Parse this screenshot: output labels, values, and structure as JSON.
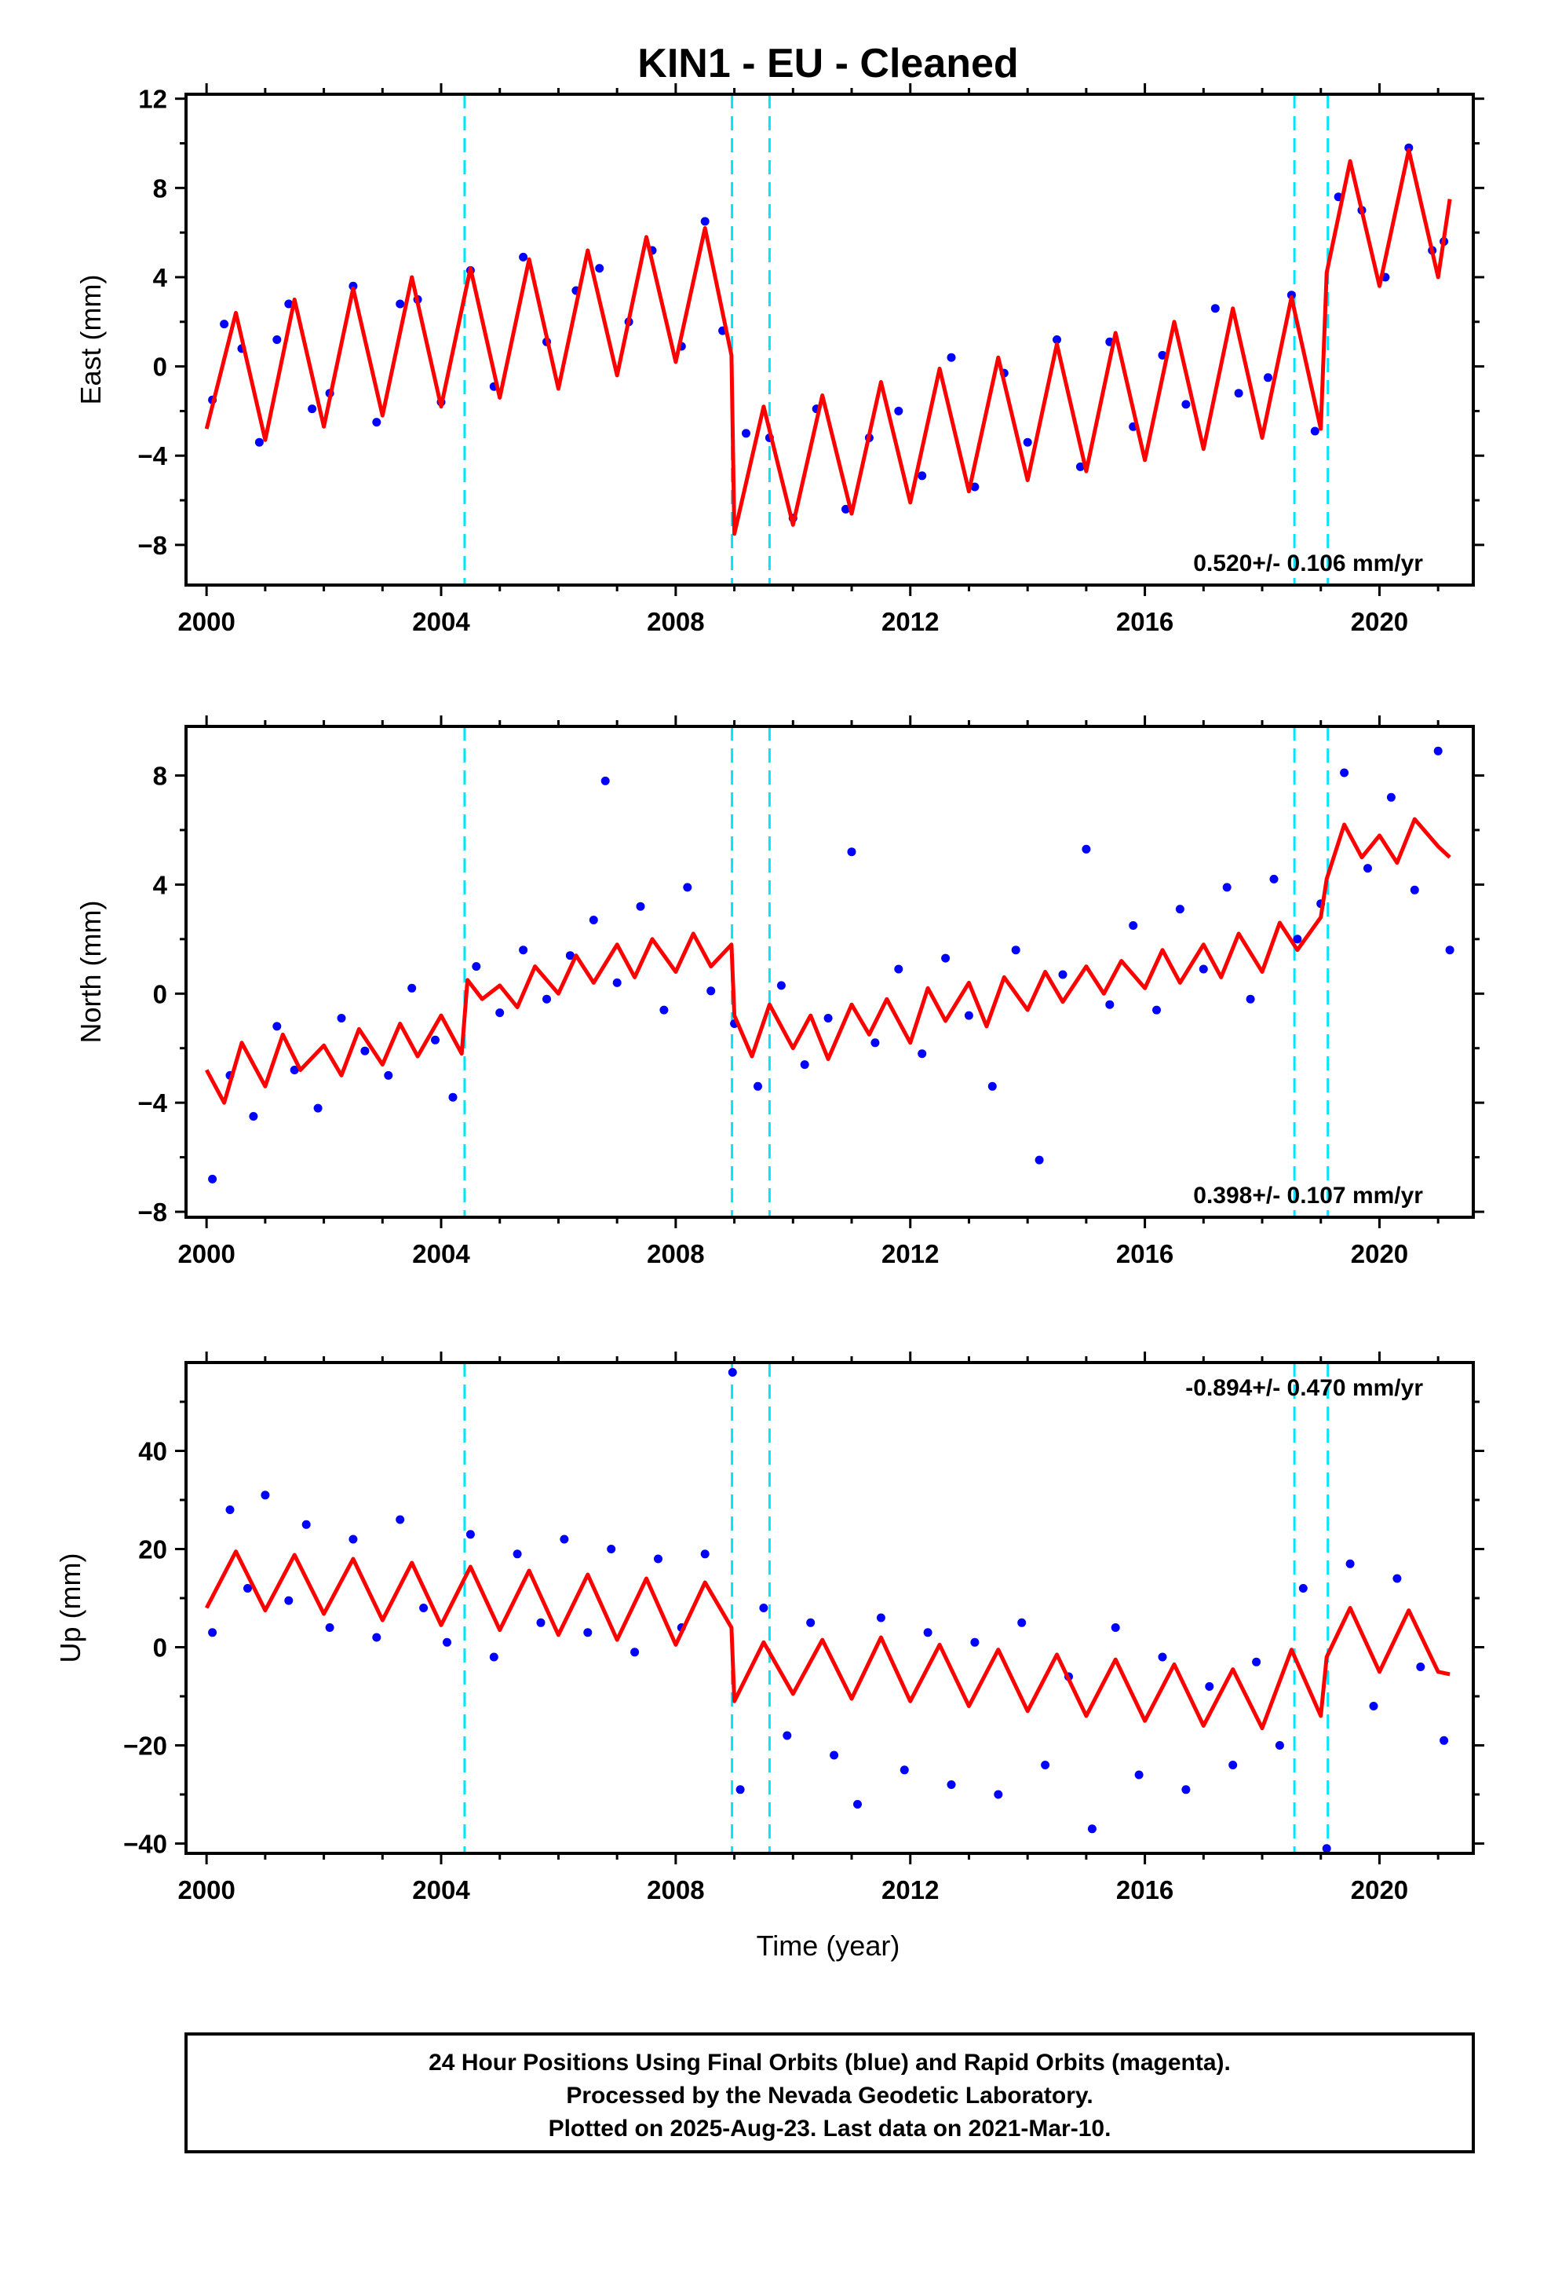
{
  "title": "KIN1  - EU - Cleaned",
  "footer": {
    "line1": "24 Hour Positions Using Final Orbits (blue) and Rapid Orbits (magenta).",
    "line2": "Processed by the Nevada Geodetic Laboratory.",
    "line3": "Plotted on 2025-Aug-23. Last data on 2021-Mar-10."
  },
  "xlabel": "Time (year)",
  "colors": {
    "points": "#0000ff",
    "model": "#ff0000",
    "steps": "#00e5ff",
    "frame": "#000000"
  },
  "chart_data": [
    {
      "type": "scatter",
      "ylabel": "East (mm)",
      "xlim": [
        1999.65,
        2021.6
      ],
      "ylim": [
        -9.8,
        12.2
      ],
      "x_ticks": [
        2000,
        2004,
        2008,
        2012,
        2016,
        2020
      ],
      "y_ticks": [
        -8,
        -4,
        0,
        4,
        8,
        12
      ],
      "rate_label": "0.520+/- 0.106 mm/yr",
      "rate_position": "bottom-right",
      "step_epochs": [
        2004.4,
        2008.96,
        2009.6,
        2018.55,
        2019.12
      ],
      "series": [
        {
          "role": "model",
          "color": "#ff0000",
          "x": [
            2000.0,
            2000.5,
            2001.0,
            2001.5,
            2002.0,
            2002.5,
            2003.0,
            2003.5,
            2004.0,
            2004.5,
            2005.0,
            2005.5,
            2006.0,
            2006.5,
            2007.0,
            2007.5,
            2008.0,
            2008.5,
            2008.95,
            2009.0,
            2009.5,
            2010.0,
            2010.5,
            2011.0,
            2011.5,
            2012.0,
            2012.5,
            2013.0,
            2013.5,
            2014.0,
            2014.5,
            2015.0,
            2015.5,
            2016.0,
            2016.5,
            2017.0,
            2017.5,
            2018.0,
            2018.5,
            2019.0,
            2019.1,
            2019.5,
            2020.0,
            2020.5,
            2021.0,
            2021.2
          ],
          "y": [
            -2.8,
            2.4,
            -3.3,
            3.0,
            -2.7,
            3.5,
            -2.2,
            4.0,
            -1.8,
            4.4,
            -1.4,
            4.8,
            -1.0,
            5.2,
            -0.4,
            5.8,
            0.2,
            6.2,
            0.5,
            -7.5,
            -1.8,
            -7.1,
            -1.3,
            -6.6,
            -0.7,
            -6.1,
            -0.1,
            -5.6,
            0.4,
            -5.1,
            1.0,
            -4.7,
            1.5,
            -4.2,
            2.0,
            -3.7,
            2.6,
            -3.2,
            3.1,
            -2.8,
            4.2,
            9.2,
            3.6,
            9.7,
            4.0,
            7.5
          ]
        },
        {
          "role": "observations",
          "color": "#0000ff",
          "x": [
            2000.1,
            2000.3,
            2000.6,
            2000.9,
            2001.2,
            2001.4,
            2001.8,
            2002.1,
            2002.5,
            2002.9,
            2003.3,
            2003.6,
            2004.0,
            2004.5,
            2004.9,
            2005.4,
            2005.8,
            2006.3,
            2006.7,
            2007.2,
            2007.6,
            2008.1,
            2008.5,
            2008.8,
            2009.2,
            2009.6,
            2010.0,
            2010.4,
            2010.9,
            2011.3,
            2011.8,
            2012.2,
            2012.7,
            2013.1,
            2013.6,
            2014.0,
            2014.5,
            2014.9,
            2015.4,
            2015.8,
            2016.3,
            2016.7,
            2017.2,
            2017.6,
            2018.1,
            2018.5,
            2018.9,
            2019.3,
            2019.7,
            2020.1,
            2020.5,
            2020.9,
            2021.1
          ],
          "y": [
            -1.5,
            1.9,
            0.8,
            -3.4,
            1.2,
            2.8,
            -1.9,
            -1.2,
            3.6,
            -2.5,
            2.8,
            3.0,
            -1.6,
            4.3,
            -0.9,
            4.9,
            1.1,
            3.4,
            4.4,
            2.0,
            5.2,
            0.9,
            6.5,
            1.6,
            -3.0,
            -3.2,
            -6.8,
            -1.9,
            -6.4,
            -3.2,
            -2.0,
            -4.9,
            0.4,
            -5.4,
            -0.3,
            -3.4,
            1.2,
            -4.5,
            1.1,
            -2.7,
            0.5,
            -1.7,
            2.6,
            -1.2,
            -0.5,
            3.2,
            -2.9,
            7.6,
            7.0,
            4.0,
            9.8,
            5.2,
            5.6
          ]
        }
      ]
    },
    {
      "type": "scatter",
      "ylabel": "North (mm)",
      "xlim": [
        1999.65,
        2021.6
      ],
      "ylim": [
        -8.2,
        9.8
      ],
      "x_ticks": [
        2000,
        2004,
        2008,
        2012,
        2016,
        2020
      ],
      "y_ticks": [
        -8,
        -4,
        0,
        4,
        8
      ],
      "rate_label": "0.398+/- 0.107 mm/yr",
      "rate_position": "bottom-right",
      "step_epochs": [
        2004.4,
        2008.96,
        2009.6,
        2018.55,
        2019.12
      ],
      "series": [
        {
          "role": "model",
          "color": "#ff0000",
          "x": [
            2000.0,
            2000.3,
            2000.6,
            2001.0,
            2001.3,
            2001.6,
            2002.0,
            2002.3,
            2002.6,
            2003.0,
            2003.3,
            2003.6,
            2004.0,
            2004.35,
            2004.45,
            2004.7,
            2005.0,
            2005.3,
            2005.6,
            2006.0,
            2006.3,
            2006.6,
            2007.0,
            2007.3,
            2007.6,
            2008.0,
            2008.3,
            2008.6,
            2008.95,
            2009.0,
            2009.3,
            2009.6,
            2010.0,
            2010.3,
            2010.6,
            2011.0,
            2011.3,
            2011.6,
            2012.0,
            2012.3,
            2012.6,
            2013.0,
            2013.3,
            2013.6,
            2014.0,
            2014.3,
            2014.6,
            2015.0,
            2015.3,
            2015.6,
            2016.0,
            2016.3,
            2016.6,
            2017.0,
            2017.3,
            2017.6,
            2018.0,
            2018.3,
            2018.6,
            2019.0,
            2019.1,
            2019.4,
            2019.7,
            2020.0,
            2020.3,
            2020.6,
            2021.0,
            2021.2
          ],
          "y": [
            -2.8,
            -4.0,
            -1.8,
            -3.4,
            -1.5,
            -2.8,
            -1.9,
            -3.0,
            -1.3,
            -2.6,
            -1.1,
            -2.3,
            -0.8,
            -2.2,
            0.5,
            -0.2,
            0.3,
            -0.5,
            1.0,
            0.0,
            1.4,
            0.4,
            1.8,
            0.6,
            2.0,
            0.8,
            2.2,
            1.0,
            1.8,
            -0.8,
            -2.3,
            -0.4,
            -2.0,
            -0.8,
            -2.4,
            -0.4,
            -1.5,
            -0.2,
            -1.8,
            0.2,
            -1.0,
            0.4,
            -1.2,
            0.6,
            -0.6,
            0.8,
            -0.3,
            1.0,
            0.0,
            1.2,
            0.2,
            1.6,
            0.4,
            1.8,
            0.6,
            2.2,
            0.8,
            2.6,
            1.6,
            2.8,
            4.2,
            6.2,
            5.0,
            5.8,
            4.8,
            6.4,
            5.4,
            5.0
          ]
        },
        {
          "role": "observations",
          "color": "#0000ff",
          "x": [
            2000.1,
            2000.4,
            2000.8,
            2001.2,
            2001.5,
            2001.9,
            2002.3,
            2002.7,
            2003.1,
            2003.5,
            2003.9,
            2004.2,
            2004.6,
            2005.0,
            2005.4,
            2005.8,
            2006.2,
            2006.6,
            2006.8,
            2007.0,
            2007.4,
            2007.8,
            2008.2,
            2008.6,
            2009.0,
            2009.4,
            2009.8,
            2010.2,
            2010.6,
            2011.0,
            2011.4,
            2011.8,
            2012.2,
            2012.6,
            2013.0,
            2013.4,
            2013.8,
            2014.2,
            2014.6,
            2015.0,
            2015.4,
            2015.8,
            2016.2,
            2016.6,
            2017.0,
            2017.4,
            2017.8,
            2018.2,
            2018.6,
            2019.0,
            2019.4,
            2019.8,
            2020.2,
            2020.6,
            2021.0,
            2021.2
          ],
          "y": [
            -6.8,
            -3.0,
            -4.5,
            -1.2,
            -2.8,
            -4.2,
            -0.9,
            -2.1,
            -3.0,
            0.2,
            -1.7,
            -3.8,
            1.0,
            -0.7,
            1.6,
            -0.2,
            1.4,
            2.7,
            7.8,
            0.4,
            3.2,
            -0.6,
            3.9,
            0.1,
            -1.1,
            -3.4,
            0.3,
            -2.6,
            -0.9,
            5.2,
            -1.8,
            0.9,
            -2.2,
            1.3,
            -0.8,
            -3.4,
            1.6,
            -6.1,
            0.7,
            5.3,
            -0.4,
            2.5,
            -0.6,
            3.1,
            0.9,
            3.9,
            -0.2,
            4.2,
            2.0,
            3.3,
            8.1,
            4.6,
            7.2,
            3.8,
            8.9,
            1.6
          ]
        }
      ]
    },
    {
      "type": "scatter",
      "ylabel": "Up (mm)",
      "xlabel": "Time (year)",
      "xlim": [
        1999.65,
        2021.6
      ],
      "ylim": [
        -42,
        58
      ],
      "x_ticks": [
        2000,
        2004,
        2008,
        2012,
        2016,
        2020
      ],
      "y_ticks": [
        -40,
        -20,
        0,
        20,
        40
      ],
      "rate_label": "-0.894+/- 0.470 mm/yr",
      "rate_position": "top-right",
      "step_epochs": [
        2004.4,
        2008.96,
        2009.6,
        2018.55,
        2019.12
      ],
      "series": [
        {
          "role": "model",
          "color": "#ff0000",
          "x": [
            2000.0,
            2000.5,
            2001.0,
            2001.5,
            2002.0,
            2002.5,
            2003.0,
            2003.5,
            2004.0,
            2004.5,
            2005.0,
            2005.5,
            2006.0,
            2006.5,
            2007.0,
            2007.5,
            2008.0,
            2008.5,
            2008.95,
            2009.0,
            2009.5,
            2010.0,
            2010.5,
            2011.0,
            2011.5,
            2012.0,
            2012.5,
            2013.0,
            2013.5,
            2014.0,
            2014.5,
            2015.0,
            2015.5,
            2016.0,
            2016.5,
            2017.0,
            2017.5,
            2018.0,
            2018.5,
            2019.0,
            2019.1,
            2019.5,
            2020.0,
            2020.5,
            2021.0,
            2021.2
          ],
          "y": [
            8.0,
            19.5,
            7.5,
            18.8,
            6.8,
            18.0,
            5.5,
            17.2,
            4.5,
            16.4,
            3.5,
            15.6,
            2.5,
            14.8,
            1.5,
            14.0,
            0.5,
            13.2,
            4.0,
            -11.0,
            1.0,
            -9.5,
            1.5,
            -10.5,
            2.0,
            -11.0,
            0.5,
            -12.0,
            -0.5,
            -13.0,
            -1.5,
            -14.0,
            -2.5,
            -15.0,
            -3.5,
            -16.0,
            -4.5,
            -16.5,
            -0.5,
            -14.0,
            -2.0,
            8.0,
            -5.0,
            7.5,
            -5.0,
            -5.5
          ]
        },
        {
          "role": "observations",
          "color": "#0000ff",
          "x": [
            2000.1,
            2000.4,
            2000.7,
            2001.0,
            2001.4,
            2001.7,
            2002.1,
            2002.5,
            2002.9,
            2003.3,
            2003.7,
            2004.1,
            2004.5,
            2004.9,
            2005.3,
            2005.7,
            2006.1,
            2006.5,
            2006.9,
            2007.3,
            2007.7,
            2008.1,
            2008.5,
            2008.97,
            2009.1,
            2009.5,
            2009.9,
            2010.3,
            2010.7,
            2011.1,
            2011.5,
            2011.9,
            2012.3,
            2012.7,
            2013.1,
            2013.5,
            2013.9,
            2014.3,
            2014.7,
            2015.1,
            2015.5,
            2015.9,
            2016.3,
            2016.7,
            2017.1,
            2017.5,
            2017.9,
            2018.3,
            2018.7,
            2019.1,
            2019.5,
            2019.9,
            2020.3,
            2020.7,
            2021.1
          ],
          "y": [
            3.0,
            28.0,
            12.0,
            31.0,
            9.5,
            25.0,
            4.0,
            22.0,
            2.0,
            26.0,
            8.0,
            1.0,
            23.0,
            -2.0,
            19.0,
            5.0,
            22.0,
            3.0,
            20.0,
            -1.0,
            18.0,
            4.0,
            19.0,
            56.0,
            -29.0,
            8.0,
            -18.0,
            5.0,
            -22.0,
            -32.0,
            6.0,
            -25.0,
            3.0,
            -28.0,
            1.0,
            -30.0,
            5.0,
            -24.0,
            -6.0,
            -37.0,
            4.0,
            -26.0,
            -2.0,
            -29.0,
            -8.0,
            -24.0,
            -3.0,
            -20.0,
            12.0,
            -41.0,
            17.0,
            -12.0,
            14.0,
            -4.0,
            -19.0
          ]
        }
      ]
    }
  ]
}
